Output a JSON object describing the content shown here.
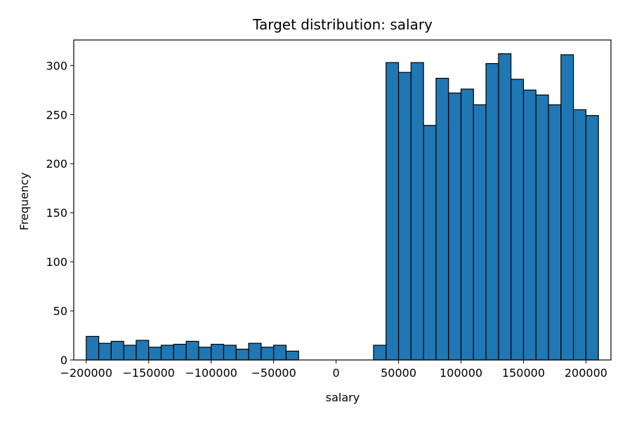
{
  "chart_data": {
    "type": "bar",
    "title": "Target distribution: salary",
    "xlabel": "salary",
    "ylabel": "Frequency",
    "xlim": [
      -210000,
      220000
    ],
    "ylim": [
      0,
      326
    ],
    "xticks": [
      -200000,
      -150000,
      -100000,
      -50000,
      0,
      50000,
      100000,
      150000,
      200000
    ],
    "xtick_labels": [
      "−200000",
      "−150000",
      "−100000",
      "−50000",
      "0",
      "50000",
      "100000",
      "150000",
      "200000"
    ],
    "yticks": [
      0,
      50,
      100,
      150,
      200,
      250,
      300
    ],
    "ytick_labels": [
      "0",
      "50",
      "100",
      "150",
      "200",
      "250",
      "300"
    ],
    "bin_start": -200000,
    "bin_width": 10000,
    "values": [
      24,
      17,
      19,
      15,
      20,
      13,
      15,
      16,
      19,
      13,
      16,
      15,
      11,
      17,
      13,
      15,
      9,
      0,
      0,
      0,
      0,
      0,
      0,
      15,
      303,
      293,
      303,
      239,
      287,
      272,
      276,
      260,
      302,
      312,
      286,
      275,
      270,
      260,
      311,
      255,
      249
    ],
    "bar_color": "#1f77b4",
    "edge_color": "#000000",
    "grid": false
  }
}
